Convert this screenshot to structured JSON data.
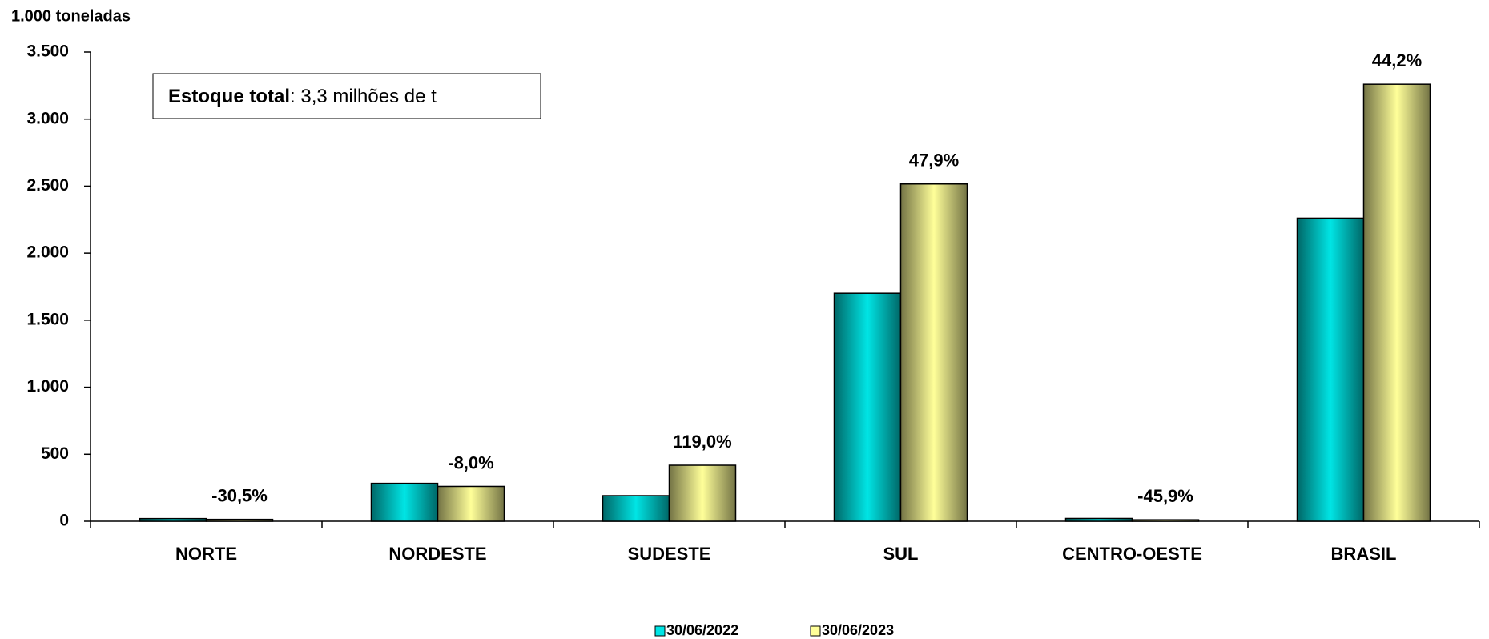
{
  "chart_data": {
    "type": "bar",
    "y_axis_label": "1.000 toneladas",
    "annotation": {
      "bold": "Estoque total",
      "text": ": 3,3 milhões de t"
    },
    "categories": [
      "NORTE",
      "NORDESTE",
      "SUDESTE",
      "SUL",
      "CENTRO-OESTE",
      "BRASIL"
    ],
    "series": [
      {
        "name": "30/06/2022",
        "color": "#00e5e5",
        "values": [
          20,
          283,
          191,
          1701,
          21,
          2261
        ]
      },
      {
        "name": "30/06/2023",
        "color": "#ffff99",
        "values": [
          14,
          260,
          418,
          2516,
          11,
          3260
        ]
      }
    ],
    "change_labels": [
      "-30,5%",
      "-8,0%",
      "119,0%",
      "47,9%",
      "-45,9%",
      "44,2%"
    ],
    "ylim": [
      0,
      3500
    ],
    "yticks": [
      0,
      500,
      {
        "value": 1000,
        "label": "1.000"
      },
      {
        "value": 1500,
        "label": "1.500"
      },
      {
        "value": 2000,
        "label": "2.000"
      },
      {
        "value": 2500,
        "label": "2.500"
      },
      {
        "value": 3000,
        "label": "3.000"
      },
      {
        "value": 3500,
        "label": "3.500"
      }
    ],
    "grid": false,
    "legend": "bottom"
  }
}
